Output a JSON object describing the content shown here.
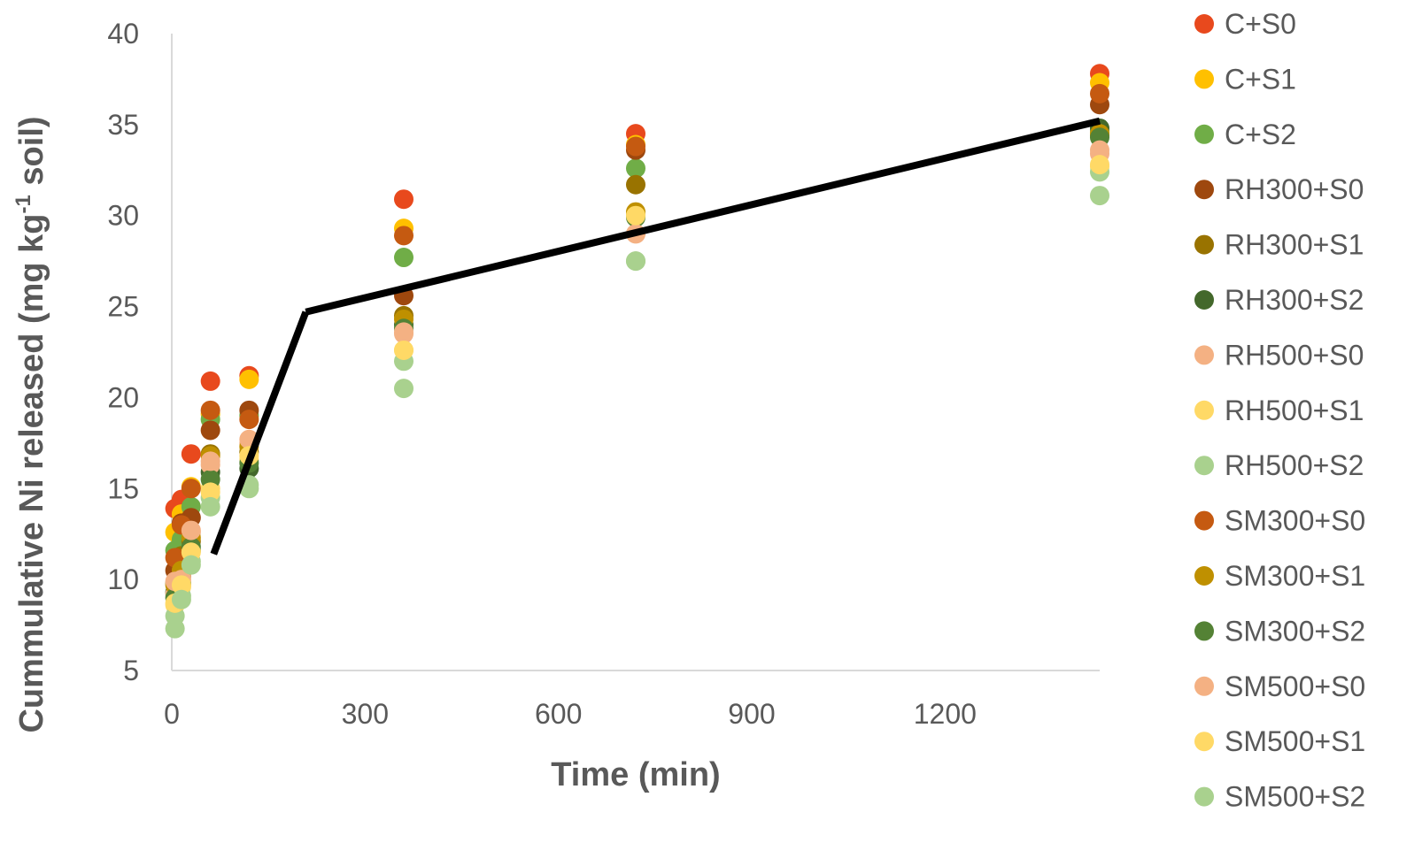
{
  "chart_data": {
    "type": "scatter",
    "xlabel": "Time (min)",
    "ylabel": {
      "prefix": "Cummulative Ni released (mg kg",
      "superscript": "-1",
      "suffix": " soil)"
    },
    "xlim": [
      0,
      1440
    ],
    "ylim": [
      5,
      40
    ],
    "x_ticks": [
      "0",
      "300",
      "600",
      "900",
      "1200"
    ],
    "y_ticks": [
      "5",
      "10",
      "15",
      "20",
      "25",
      "30",
      "35",
      "40"
    ],
    "grid": false,
    "legend_position": "right",
    "x": [
      5,
      15,
      30,
      60,
      120,
      360,
      720,
      1440
    ],
    "series": [
      {
        "name": "C+S0",
        "color": "#E8491D",
        "values": [
          13.9,
          14.4,
          16.9,
          20.9,
          21.2,
          30.9,
          34.5,
          37.8
        ]
      },
      {
        "name": "C+S1",
        "color": "#FFC000",
        "values": [
          12.6,
          13.6,
          15.1,
          19.1,
          21.0,
          29.3,
          33.9,
          37.3
        ]
      },
      {
        "name": "C+S2",
        "color": "#70AD47",
        "values": [
          11.6,
          12.2,
          14.0,
          18.8,
          19.0,
          27.7,
          32.6,
          34.6
        ]
      },
      {
        "name": "RH300+S0",
        "color": "#9E480E",
        "values": [
          10.5,
          13.1,
          13.4,
          18.2,
          19.3,
          25.6,
          33.6,
          36.1
        ]
      },
      {
        "name": "RH300+S1",
        "color": "#997300",
        "values": [
          9.8,
          11.3,
          12.1,
          16.9,
          17.0,
          24.5,
          31.7,
          34.4
        ]
      },
      {
        "name": "RH300+S2",
        "color": "#43682B",
        "values": [
          9.3,
          10.2,
          11.6,
          15.9,
          16.1,
          24.0,
          30.0,
          34.8
        ]
      },
      {
        "name": "RH500+S0",
        "color": "#F4B183",
        "values": [
          9.2,
          10.2,
          12.6,
          16.3,
          17.5,
          23.5,
          29.0,
          33.4
        ]
      },
      {
        "name": "RH500+S1",
        "color": "#FFD966",
        "values": [
          8.6,
          9.6,
          11.6,
          15.0,
          16.6,
          22.6,
          30.1,
          32.7
        ]
      },
      {
        "name": "RH500+S2",
        "color": "#A9D18E",
        "values": [
          8.0,
          9.1,
          11.0,
          14.5,
          15.2,
          22.0,
          27.5,
          32.4
        ]
      },
      {
        "name": "SM300+S0",
        "color": "#C55A11",
        "values": [
          11.2,
          13.0,
          15.0,
          19.3,
          18.8,
          28.9,
          33.8,
          36.7
        ]
      },
      {
        "name": "SM300+S1",
        "color": "#BF9000",
        "values": [
          9.7,
          10.5,
          12.3,
          16.8,
          17.3,
          24.3,
          30.2,
          34.5
        ]
      },
      {
        "name": "SM300+S2",
        "color": "#548235",
        "values": [
          9.0,
          9.8,
          11.8,
          15.5,
          16.4,
          23.8,
          29.9,
          34.3
        ]
      },
      {
        "name": "SM500+S0",
        "color": "#F4B183",
        "values": [
          9.9,
          10.0,
          12.7,
          16.5,
          17.7,
          23.6,
          29.0,
          33.6
        ]
      },
      {
        "name": "SM500+S1",
        "color": "#FFD966",
        "values": [
          8.7,
          9.7,
          11.5,
          14.8,
          16.8,
          22.6,
          30.0,
          32.8
        ]
      },
      {
        "name": "SM500+S2",
        "color": "#A9D18E",
        "values": [
          7.3,
          8.9,
          10.8,
          14.0,
          15.0,
          20.5,
          27.5,
          31.1
        ]
      }
    ],
    "trendline": {
      "color": "#000000",
      "segments": [
        {
          "x": [
            65,
            208
          ],
          "y": [
            11.4,
            24.7
          ]
        },
        {
          "x": [
            208,
            1440
          ],
          "y": [
            24.7,
            35.2
          ]
        }
      ]
    }
  }
}
